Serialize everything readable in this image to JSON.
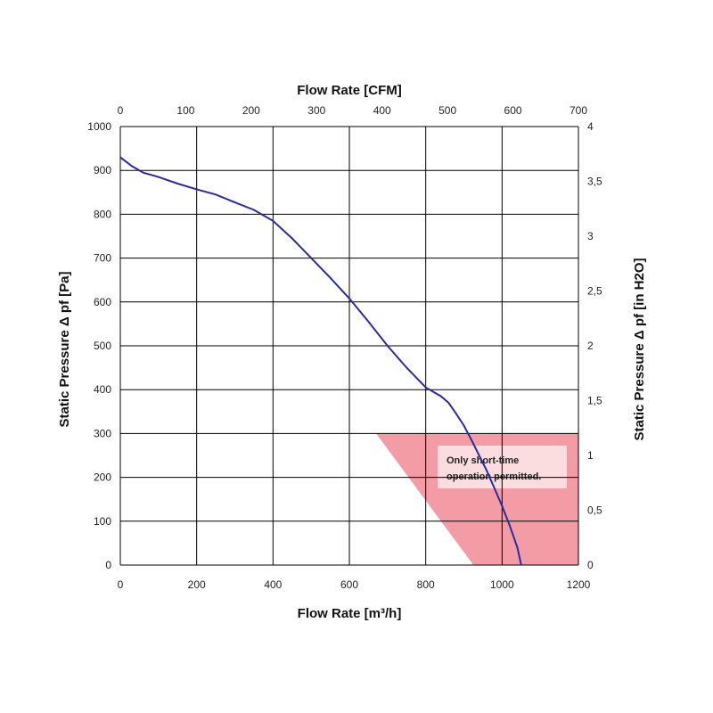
{
  "chart_data": {
    "type": "line",
    "x_bottom": {
      "label": "Flow Rate [m³/h]",
      "range": [
        0,
        1200
      ],
      "ticks": [
        "0",
        "200",
        "400",
        "600",
        "800",
        "1000",
        "1200"
      ]
    },
    "x_top": {
      "label": "Flow Rate [CFM]",
      "range": [
        0,
        700
      ],
      "ticks": [
        "0",
        "100",
        "200",
        "300",
        "400",
        "500",
        "600",
        "700"
      ]
    },
    "y_left": {
      "label": "Static Pressure Δ pf [Pa]",
      "range": [
        0,
        1000
      ],
      "ticks": [
        "0",
        "100",
        "200",
        "300",
        "400",
        "500",
        "600",
        "700",
        "800",
        "900",
        "1000"
      ]
    },
    "y_right": {
      "label": "Static Pressure Δ pf [in H2O]",
      "range": [
        0,
        4
      ],
      "ticks": [
        "0",
        "0,5",
        "1",
        "1,5",
        "2",
        "2,5",
        "3",
        "3,5",
        "4"
      ]
    },
    "grid": true,
    "series": [
      {
        "color": "#2b2b9e",
        "x": [
          0,
          30,
          60,
          100,
          150,
          200,
          250,
          300,
          350,
          400,
          450,
          500,
          550,
          600,
          650,
          700,
          750,
          800,
          840,
          860,
          880,
          900,
          920,
          940,
          960,
          980,
          1000,
          1020,
          1040,
          1050
        ],
        "y": [
          930,
          910,
          895,
          885,
          870,
          857,
          845,
          827,
          810,
          785,
          745,
          700,
          655,
          608,
          555,
          500,
          450,
          405,
          385,
          370,
          345,
          318,
          285,
          250,
          215,
          175,
          135,
          90,
          40,
          0
        ]
      }
    ],
    "shaded_region": {
      "color": "#f28b96",
      "polygon": [
        [
          670,
          300
        ],
        [
          1200,
          300
        ],
        [
          1200,
          0
        ],
        [
          925,
          0
        ]
      ]
    },
    "annotation": {
      "lines": [
        "Only short-time",
        "operation permitted."
      ]
    }
  }
}
